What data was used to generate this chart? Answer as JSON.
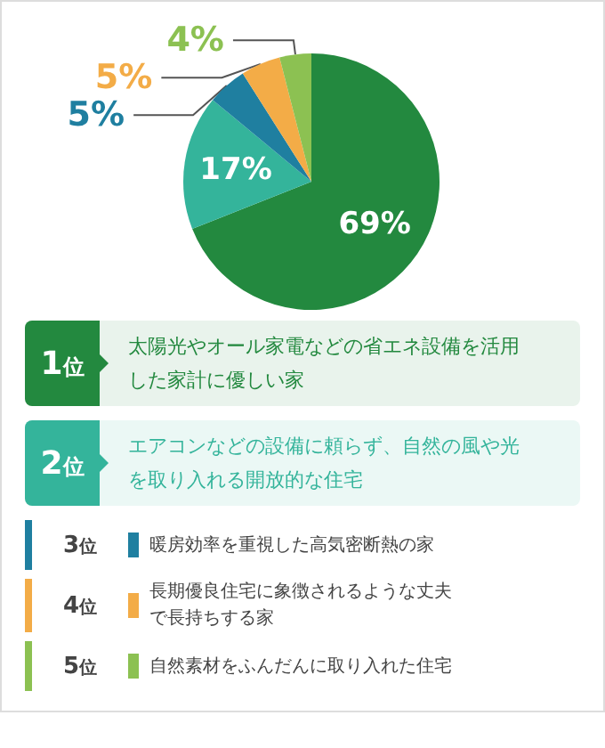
{
  "chart_data": {
    "type": "pie",
    "categories": [
      "太陽光やオール家電などの省エネ設備を活用した家計に優しい家",
      "エアコンなどの設備に頼らず、自然の風や光を取り入れる開放的な住宅",
      "暖房効率を重視した高気密断熱の家",
      "長期優良住宅に象徴されるような丈夫で長持ちする家",
      "自然素材をふんだんに取り入れた住宅"
    ],
    "values": [
      69,
      17,
      5,
      5,
      4
    ],
    "value_labels": [
      "69%",
      "17%",
      "5%",
      "5%",
      "4%"
    ],
    "colors": [
      "#23893f",
      "#34b49b",
      "#1f7fa0",
      "#f3ac47",
      "#8cc152"
    ],
    "annotations": [
      "1位",
      "2位",
      "3位",
      "4位",
      "5位"
    ],
    "legend": "bottom"
  }
}
